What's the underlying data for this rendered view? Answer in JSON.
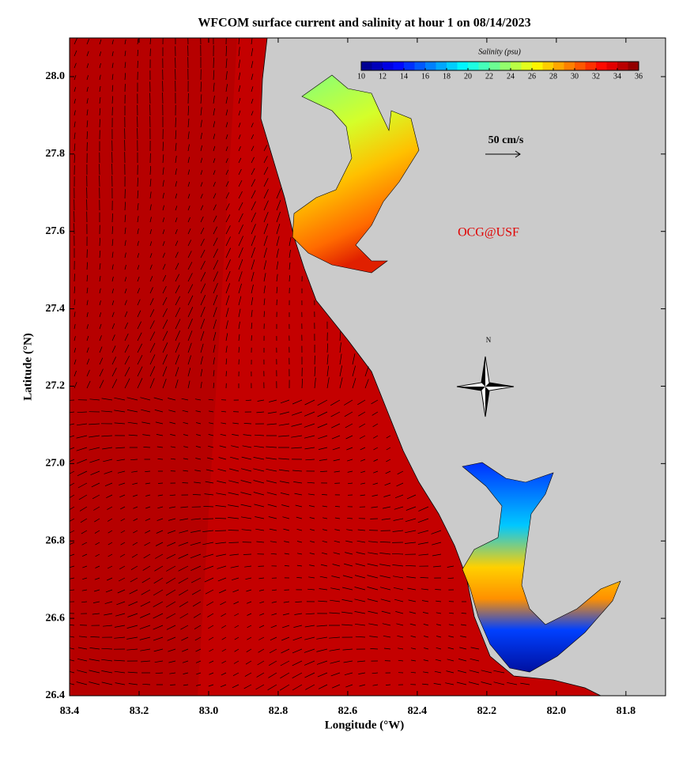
{
  "chart_data": {
    "type": "map",
    "title": "WFCOM surface current and salinity at hour 1 on 08/14/2023",
    "x_label": "Longitude (°W)",
    "y_label": "Latitude (°N)",
    "xlim": [
      83.4,
      81.686
    ],
    "ylim": [
      26.4,
      28.1
    ],
    "xticks": [
      83.4,
      83.2,
      {
        "value": 83,
        "label": "83.0"
      },
      82.8,
      82.6,
      82.4,
      82.2,
      {
        "value": 82,
        "label": "82.0"
      },
      81.8
    ],
    "yticks": [
      26.4,
      26.6,
      26.8,
      {
        "value": 27,
        "label": "27.0"
      },
      27.2,
      27.4,
      27.6,
      27.8,
      {
        "value": 28,
        "label": "28.0"
      }
    ],
    "colorbar": {
      "title": "Salinity (psu)",
      "range": [
        10,
        36
      ],
      "ticks": [
        10,
        12,
        14,
        16,
        18,
        20,
        22,
        24,
        26,
        28,
        30,
        32,
        34,
        36
      ]
    },
    "annotations": {
      "scale": "50 cm/s",
      "credit": "OCG@USF",
      "north": "N"
    }
  }
}
